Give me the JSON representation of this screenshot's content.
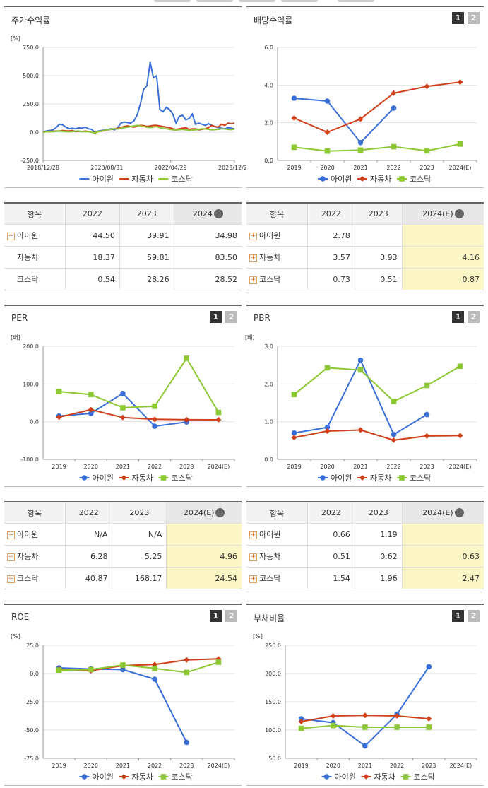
{
  "colors": {
    "a": "#3a6fd8",
    "b": "#d0401a",
    "c": "#8cc832",
    "hl": "#fdf6c6"
  },
  "series_names": [
    "아이윈",
    "자동차",
    "코스닥"
  ],
  "buttons": [
    "1",
    "2"
  ],
  "panels": {
    "stock": {
      "title": "주가수익률",
      "unit": "[%]"
    },
    "div": {
      "title": "배당수익률"
    },
    "per": {
      "title": "PER",
      "unit": "[배]"
    },
    "pbr": {
      "title": "PBR",
      "unit": "[배]"
    },
    "roe": {
      "title": "ROE",
      "unit": "[%]"
    },
    "debt": {
      "title": "부채비율",
      "unit": "[%]"
    }
  },
  "tables": {
    "stock": {
      "headers": [
        "항목",
        "2022",
        "2023",
        "2024"
      ],
      "rows": [
        {
          "label": "아이윈",
          "plus": true,
          "v": [
            "44.50",
            "39.91",
            "34.98"
          ]
        },
        {
          "label": "자동차",
          "plus": false,
          "v": [
            "18.37",
            "59.81",
            "83.50"
          ]
        },
        {
          "label": "코스닥",
          "plus": false,
          "v": [
            "0.54",
            "28.26",
            "28.52"
          ]
        }
      ]
    },
    "div": {
      "headers": [
        "항목",
        "2022",
        "2023",
        "2024(E)"
      ],
      "rows": [
        {
          "label": "아이윈",
          "plus": true,
          "v": [
            "2.78",
            "",
            ""
          ]
        },
        {
          "label": "자동차",
          "plus": true,
          "v": [
            "3.57",
            "3.93",
            "4.16"
          ]
        },
        {
          "label": "코스닥",
          "plus": true,
          "v": [
            "0.73",
            "0.51",
            "0.87"
          ]
        }
      ]
    },
    "per": {
      "headers": [
        "항목",
        "2022",
        "2023",
        "2024(E)"
      ],
      "rows": [
        {
          "label": "아이윈",
          "plus": true,
          "v": [
            "N/A",
            "N/A",
            ""
          ]
        },
        {
          "label": "자동차",
          "plus": true,
          "v": [
            "6.28",
            "5.25",
            "4.96"
          ]
        },
        {
          "label": "코스닥",
          "plus": true,
          "v": [
            "40.87",
            "168.17",
            "24.54"
          ]
        }
      ]
    },
    "pbr": {
      "headers": [
        "항목",
        "2022",
        "2023",
        "2024(E)"
      ],
      "rows": [
        {
          "label": "아이윈",
          "plus": true,
          "v": [
            "0.66",
            "1.19",
            ""
          ]
        },
        {
          "label": "자동차",
          "plus": true,
          "v": [
            "0.51",
            "0.62",
            "0.63"
          ]
        },
        {
          "label": "코스닥",
          "plus": true,
          "v": [
            "1.54",
            "1.96",
            "2.47"
          ]
        }
      ]
    }
  },
  "chart_data": [
    {
      "id": "stock",
      "type": "line",
      "x_ticks": [
        "2018/12/28",
        "2020/08/31",
        "2022/04/29",
        "2023/12/28"
      ],
      "ylim": [
        -250,
        750
      ],
      "y_ticks": [
        "750.0",
        "500.0",
        "250.0",
        "0.0",
        "-250.0"
      ],
      "y_tick_values": [
        750,
        500,
        250,
        0,
        -250
      ],
      "series": [
        {
          "name": "아이윈",
          "values": [
            0,
            10,
            15,
            20,
            40,
            70,
            65,
            45,
            30,
            35,
            30,
            38,
            35,
            45,
            30,
            25,
            -5,
            10,
            15,
            20,
            25,
            30,
            20,
            40,
            80,
            90,
            85,
            80,
            100,
            150,
            250,
            380,
            410,
            620,
            480,
            500,
            200,
            180,
            220,
            200,
            160,
            80,
            140,
            150,
            110,
            120,
            160,
            70,
            80,
            70,
            60,
            75,
            60,
            50,
            40,
            35,
            30,
            40,
            35,
            30
          ]
        },
        {
          "name": "자동차",
          "values": [
            0,
            5,
            5,
            8,
            10,
            10,
            15,
            12,
            10,
            15,
            5,
            8,
            5,
            10,
            5,
            0,
            -5,
            5,
            10,
            15,
            20,
            25,
            30,
            35,
            40,
            50,
            55,
            50,
            45,
            55,
            60,
            58,
            50,
            55,
            60,
            60,
            55,
            50,
            45,
            40,
            30,
            25,
            30,
            35,
            40,
            25,
            30,
            30,
            20,
            25,
            30,
            40,
            60,
            50,
            45,
            70,
            60,
            80,
            75,
            80
          ]
        },
        {
          "name": "코스닥",
          "values": [
            0,
            3,
            5,
            5,
            8,
            10,
            8,
            5,
            3,
            5,
            8,
            10,
            5,
            5,
            3,
            0,
            -8,
            5,
            10,
            18,
            20,
            25,
            30,
            28,
            35,
            40,
            45,
            50,
            55,
            60,
            55,
            50,
            45,
            40,
            45,
            50,
            40,
            35,
            30,
            25,
            20,
            18,
            22,
            25,
            20,
            15,
            18,
            20,
            25,
            30,
            28,
            25,
            20,
            22,
            25,
            30,
            28,
            25,
            22,
            28
          ]
        }
      ]
    },
    {
      "id": "div",
      "type": "line",
      "categories": [
        "2019",
        "2020",
        "2021",
        "2022",
        "2023",
        "2024(E)"
      ],
      "ylim": [
        0,
        6
      ],
      "y_ticks": [
        "6.0",
        "4.0",
        "2.0",
        "0.0"
      ],
      "y_tick_values": [
        6,
        4,
        2,
        0
      ],
      "series": [
        {
          "name": "아이윈",
          "values": [
            3.3,
            3.15,
            0.95,
            2.78,
            null,
            null
          ]
        },
        {
          "name": "자동차",
          "values": [
            2.25,
            1.5,
            2.2,
            3.57,
            3.93,
            4.16
          ]
        },
        {
          "name": "코스닥",
          "values": [
            0.7,
            0.5,
            0.55,
            0.73,
            0.51,
            0.87
          ]
        }
      ]
    },
    {
      "id": "per",
      "type": "line",
      "categories": [
        "2019",
        "2020",
        "2021",
        "2022",
        "2023",
        "2024(E)"
      ],
      "ylim": [
        -100,
        200
      ],
      "y_ticks": [
        "200.0",
        "100.0",
        "0.0",
        "-100.0"
      ],
      "y_tick_values": [
        200,
        100,
        0,
        -100
      ],
      "series": [
        {
          "name": "아이윈",
          "values": [
            15,
            22,
            75,
            -12,
            -1,
            null
          ]
        },
        {
          "name": "자동차",
          "values": [
            12,
            32,
            11,
            6.28,
            5.25,
            4.96
          ]
        },
        {
          "name": "코스닥",
          "values": [
            80,
            72,
            37,
            40.87,
            168.17,
            24.54
          ]
        }
      ]
    },
    {
      "id": "pbr",
      "type": "line",
      "categories": [
        "2019",
        "2020",
        "2021",
        "2022",
        "2023",
        "2024(E)"
      ],
      "ylim": [
        0,
        3
      ],
      "y_ticks": [
        "3.0",
        "2.0",
        "1.0",
        "0.0"
      ],
      "y_tick_values": [
        3,
        2,
        1,
        0
      ],
      "series": [
        {
          "name": "아이윈",
          "values": [
            0.7,
            0.85,
            2.63,
            0.66,
            1.19,
            null
          ]
        },
        {
          "name": "자동차",
          "values": [
            0.58,
            0.75,
            0.78,
            0.51,
            0.62,
            0.63
          ]
        },
        {
          "name": "코스닥",
          "values": [
            1.72,
            2.43,
            2.37,
            1.54,
            1.96,
            2.47
          ]
        }
      ]
    },
    {
      "id": "roe",
      "type": "line",
      "categories": [
        "2019",
        "2020",
        "2021",
        "2022",
        "2023",
        "2024(E)"
      ],
      "ylim": [
        -75,
        25
      ],
      "y_ticks": [
        "25.0",
        "0.0",
        "-25.0",
        "-50.0",
        "-75.0"
      ],
      "y_tick_values": [
        25,
        0,
        -25,
        -50,
        -75
      ],
      "series": [
        {
          "name": "아이윈",
          "values": [
            5,
            4,
            3.5,
            -5,
            -61,
            null
          ]
        },
        {
          "name": "자동차",
          "values": [
            4,
            2.5,
            7,
            8,
            12,
            13
          ]
        },
        {
          "name": "코스닥",
          "values": [
            3,
            3.5,
            7.5,
            4.5,
            1,
            10
          ]
        }
      ]
    },
    {
      "id": "debt",
      "type": "line",
      "categories": [
        "2019",
        "2020",
        "2021",
        "2022",
        "2023",
        "2024(E)"
      ],
      "ylim": [
        50,
        250
      ],
      "y_ticks": [
        "250.0",
        "200.0",
        "150.0",
        "100.0",
        "50.0"
      ],
      "y_tick_values": [
        250,
        200,
        150,
        100,
        50
      ],
      "series": [
        {
          "name": "아이윈",
          "values": [
            120,
            113,
            72,
            128,
            212,
            null
          ]
        },
        {
          "name": "자동차",
          "values": [
            115,
            125,
            126,
            125,
            120,
            null
          ]
        },
        {
          "name": "코스닥",
          "values": [
            103,
            108,
            105,
            105,
            105,
            null
          ]
        }
      ]
    }
  ]
}
